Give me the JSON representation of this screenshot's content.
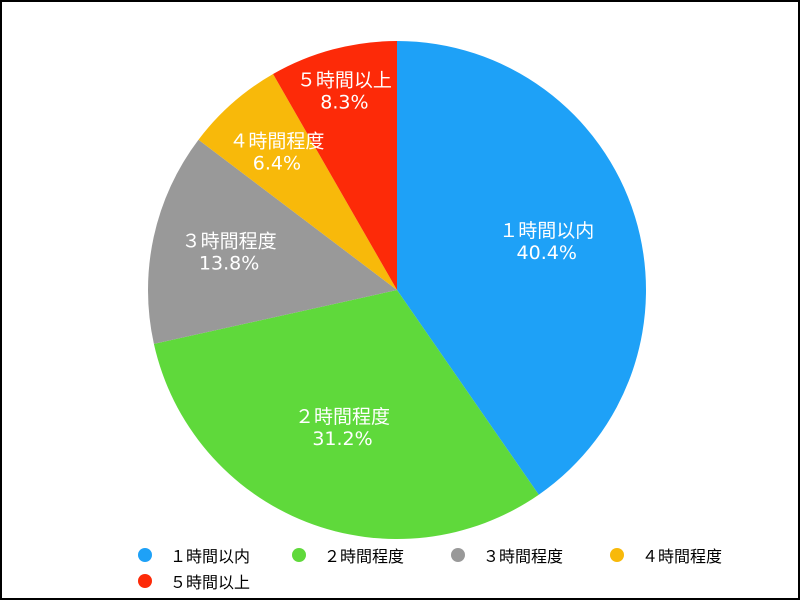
{
  "chart_data": {
    "type": "pie",
    "title": "",
    "categories": [
      "１時間以内",
      "２時間程度",
      "３時間程度",
      "４時間程度",
      "５時間以上"
    ],
    "values": [
      40.4,
      31.2,
      13.8,
      6.4,
      8.3
    ],
    "value_labels": [
      "40.4%",
      "31.2%",
      "13.8%",
      "6.4%",
      "8.3%"
    ],
    "colors": [
      "#1ea1f7",
      "#5fd93b",
      "#999999",
      "#f8b90a",
      "#fd2a08"
    ],
    "start_angle_deg": 0,
    "direction": "clockwise",
    "legend_position": "bottom"
  }
}
